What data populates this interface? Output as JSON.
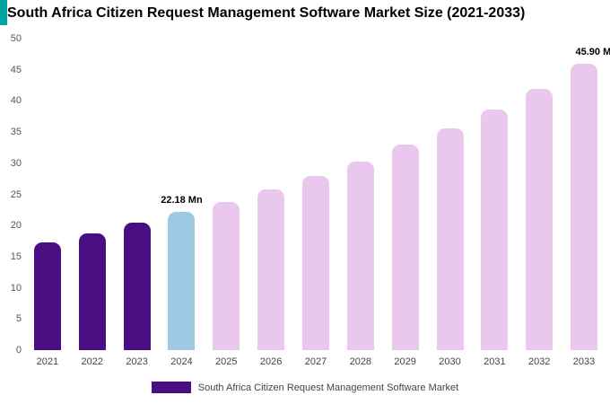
{
  "title": "South Africa Citizen Request Management Software Market Size (2021-2033)",
  "accent_color": "#00a2a2",
  "chart_data": {
    "type": "bar",
    "title": "South Africa Citizen Request Management Software Market Size (2021-2033)",
    "categories": [
      "2021",
      "2022",
      "2023",
      "2024",
      "2025",
      "2026",
      "2027",
      "2028",
      "2029",
      "2030",
      "2031",
      "2032",
      "2033"
    ],
    "values": [
      17.3,
      18.8,
      20.5,
      22.18,
      23.8,
      25.8,
      28.0,
      30.2,
      33.0,
      35.6,
      38.6,
      41.9,
      45.9
    ],
    "bar_colors": [
      "#4a0d82",
      "#4a0d82",
      "#4a0d82",
      "#9ec9e2",
      "#eac7ec",
      "#eac7ec",
      "#eac7ec",
      "#eac7ec",
      "#eac7ec",
      "#eac7ec",
      "#eac7ec",
      "#eac7ec",
      "#eac7ec"
    ],
    "annotations": [
      {
        "index": 3,
        "label": "22.18 Mn"
      },
      {
        "index": 12,
        "label": "45.90 Mn"
      }
    ],
    "xlabel": "",
    "ylabel": "",
    "ylim": [
      0,
      50
    ],
    "yticks": [
      0,
      5,
      10,
      15,
      20,
      25,
      30,
      35,
      40,
      45,
      50
    ],
    "grid": false,
    "legend": {
      "position": "bottom",
      "label": "South Africa Citizen Request Management Software Market",
      "color": "#4a0d82"
    }
  }
}
